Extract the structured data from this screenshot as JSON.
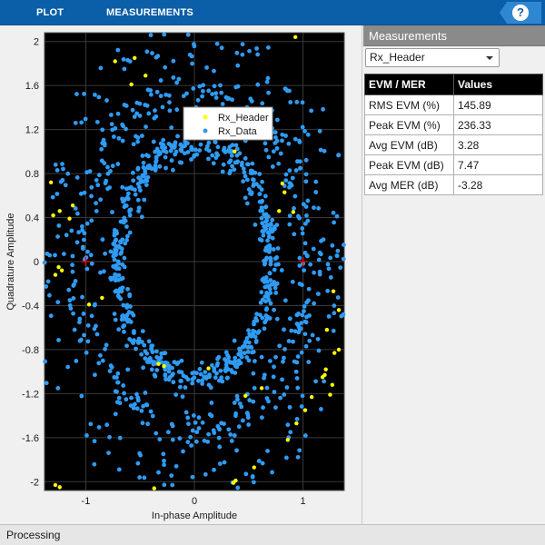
{
  "toolstrip": {
    "tabs": [
      {
        "label": "PLOT"
      },
      {
        "label": "MEASUREMENTS"
      }
    ],
    "help_label": "?"
  },
  "measurements": {
    "panel_title": "Measurements",
    "selected_signal": "Rx_Header",
    "table_headers": [
      "EVM / MER",
      "Values"
    ],
    "rows": [
      {
        "label": "RMS EVM (%)",
        "value": "145.89"
      },
      {
        "label": "Peak EVM (%)",
        "value": "236.33"
      },
      {
        "label": "Avg EVM (dB)",
        "value": "3.28"
      },
      {
        "label": "Peak EVM (dB)",
        "value": "7.47"
      },
      {
        "label": "Avg MER (dB)",
        "value": "-3.28"
      }
    ]
  },
  "status": {
    "text": "Processing"
  },
  "chart_data": {
    "type": "scatter",
    "title": "",
    "xlabel": "In-phase Amplitude",
    "ylabel": "Quadrature Amplitude",
    "xlim": [
      -1.38,
      1.38
    ],
    "ylim": [
      -2.08,
      2.08
    ],
    "xticks": [
      -1,
      0,
      1
    ],
    "yticks": [
      2,
      1.6,
      1.2,
      0.8,
      0.4,
      0,
      -0.4,
      -0.8,
      -1.2,
      -1.6,
      -2
    ],
    "ytick_labels": [
      "2",
      "1.6",
      "1.2",
      "0.8",
      "0.4",
      "0",
      "-0.4",
      "-0.8",
      "-1.2",
      "-1.6",
      "-2"
    ],
    "xtick_labels": [
      "-1",
      "0",
      "1"
    ],
    "grid": true,
    "background": "#000000",
    "legend_position": "top-center",
    "reference_points": [
      {
        "x": -1,
        "y": 0
      },
      {
        "x": 1,
        "y": 0
      }
    ],
    "reference_color": "#ff0000",
    "series": [
      {
        "name": "Rx_Header",
        "color": "#ffff00",
        "points": [
          [
            -1.32,
            0.72
          ],
          [
            -1.3,
            0.42
          ],
          [
            -1.25,
            -0.05
          ],
          [
            -1.22,
            -0.08
          ],
          [
            -1.28,
            -0.12
          ],
          [
            -1.24,
            0.46
          ],
          [
            -0.73,
            1.82
          ],
          [
            -0.55,
            1.85
          ],
          [
            -0.58,
            1.61
          ],
          [
            -0.45,
            1.69
          ],
          [
            0.93,
            2.04
          ],
          [
            0.37,
            1.0
          ],
          [
            0.81,
            0.71
          ],
          [
            0.83,
            0.63
          ],
          [
            0.91,
            0.45
          ],
          [
            0.78,
            0.46
          ],
          [
            1.28,
            -0.27
          ],
          [
            1.33,
            -0.44
          ],
          [
            1.22,
            -0.62
          ],
          [
            1.29,
            -0.83
          ],
          [
            1.21,
            -0.98
          ],
          [
            1.18,
            -1.05
          ],
          [
            1.08,
            -1.23
          ],
          [
            1.02,
            -1.35
          ],
          [
            0.94,
            -1.47
          ],
          [
            0.86,
            -1.62
          ],
          [
            0.47,
            -1.22
          ],
          [
            0.36,
            -2.01
          ],
          [
            0.38,
            -1.99
          ],
          [
            -1.28,
            -2.03
          ],
          [
            -1.24,
            -2.05
          ],
          [
            -0.97,
            -0.39
          ],
          [
            -0.85,
            -0.33
          ],
          [
            -0.33,
            -0.93
          ],
          [
            -0.28,
            -0.95
          ],
          [
            0.62,
            -1.15
          ],
          [
            0.55,
            -1.87
          ],
          [
            -0.37,
            -2.06
          ],
          [
            1.33,
            -0.8
          ],
          [
            1.27,
            -1.12
          ],
          [
            1.25,
            -1.21
          ],
          [
            1.2,
            -1.03
          ],
          [
            0.13,
            -0.97
          ],
          [
            -1.15,
            0.39
          ],
          [
            -1.12,
            0.51
          ]
        ]
      },
      {
        "name": "Rx_Data",
        "color": "#2f9bf3",
        "points": []
      }
    ]
  }
}
